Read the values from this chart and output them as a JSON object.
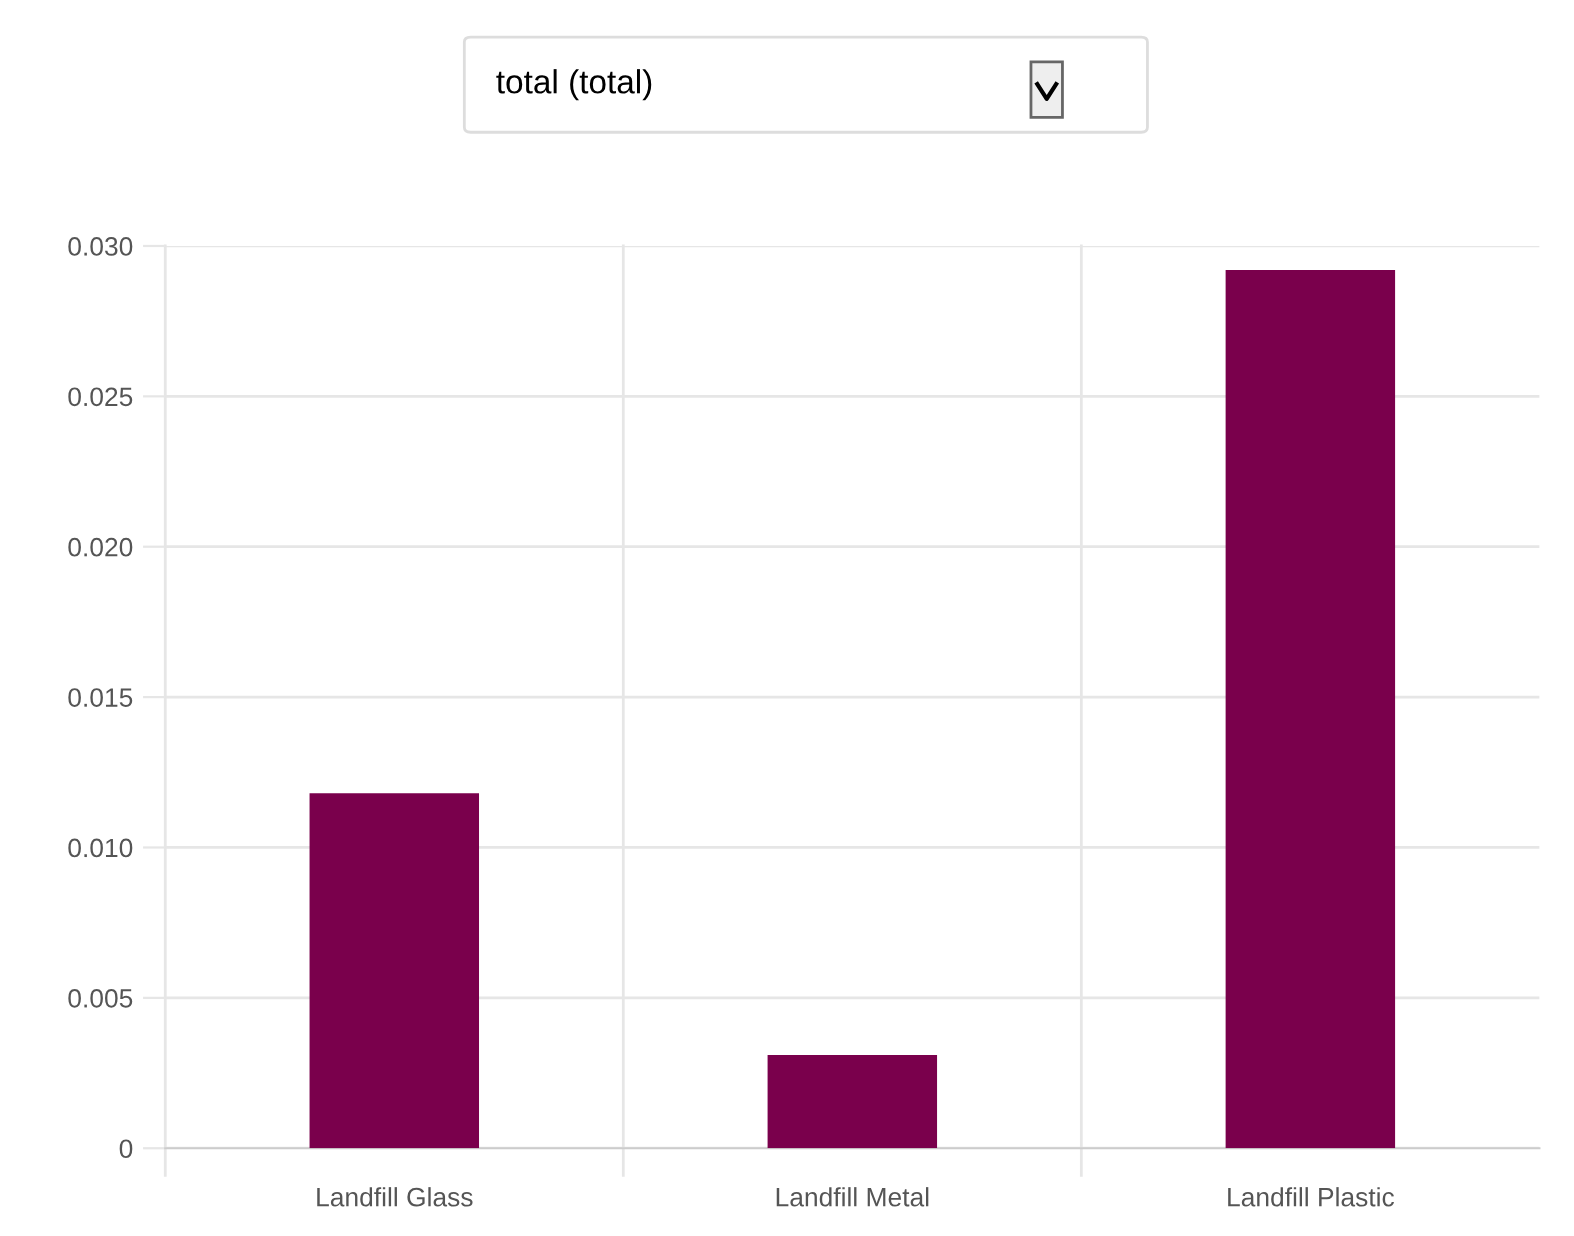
{
  "chart_data": {
    "type": "bar",
    "title": "total (total)",
    "categories": [
      "Landfill Glass",
      "Landfill Metal",
      "Landfill Plastic"
    ],
    "values": [
      0.0118,
      0.0031,
      0.0292
    ],
    "color": "#7a004c",
    "ylim": [
      0,
      0.03
    ],
    "yticks": [
      0,
      0.005,
      {
        "value": 0.01,
        "label": "0.010"
      },
      0.015,
      {
        "value": 0.02,
        "label": "0.020"
      },
      0.025,
      {
        "value": 0.03,
        "label": "0.030"
      }
    ],
    "grid": true
  }
}
